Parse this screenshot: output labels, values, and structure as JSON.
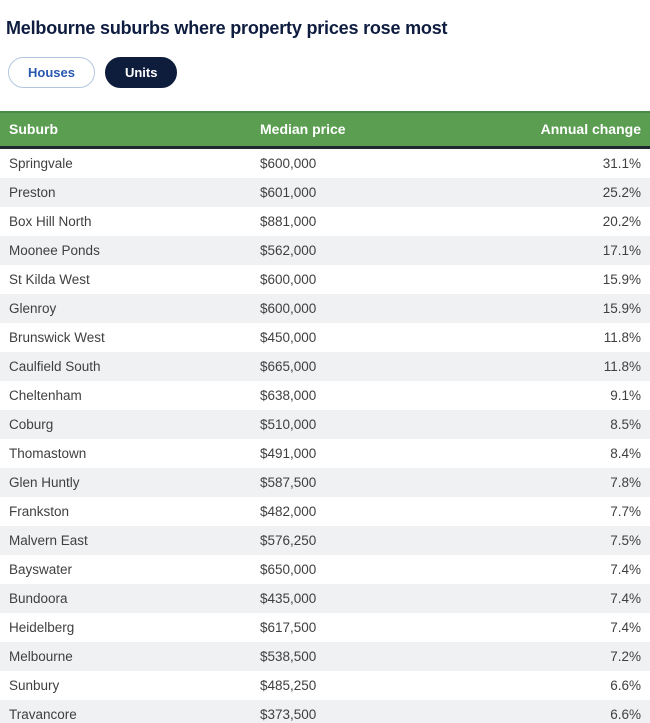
{
  "title": "Melbourne suburbs where property prices rose most",
  "tabs": [
    {
      "label": "Houses",
      "state": "inactive"
    },
    {
      "label": "Units",
      "state": "active"
    }
  ],
  "colors": {
    "header_green": "#5b9e52",
    "header_green_top_border": "#4a8943",
    "header_bottom_border": "#20282f",
    "navy": "#0f1d3d",
    "tab_blue_text": "#2a58b0",
    "tab_blue_border": "#b4c6df",
    "row_alt_gray": "#f0f1f3",
    "cell_text": "#3f3f3f"
  },
  "chart_data": {
    "type": "table",
    "title": "Melbourne suburbs where property prices rose most",
    "tab_options": [
      "Houses",
      "Units"
    ],
    "selected_tab": "Units",
    "columns": [
      "Suburb",
      "Median price",
      "Annual change"
    ],
    "rows": [
      {
        "suburb": "Springvale",
        "median_price": "$600,000",
        "annual_change": "31.1%"
      },
      {
        "suburb": "Preston",
        "median_price": "$601,000",
        "annual_change": "25.2%"
      },
      {
        "suburb": "Box Hill North",
        "median_price": "$881,000",
        "annual_change": "20.2%"
      },
      {
        "suburb": "Moonee Ponds",
        "median_price": "$562,000",
        "annual_change": "17.1%"
      },
      {
        "suburb": "St Kilda West",
        "median_price": "$600,000",
        "annual_change": "15.9%"
      },
      {
        "suburb": "Glenroy",
        "median_price": "$600,000",
        "annual_change": "15.9%"
      },
      {
        "suburb": "Brunswick West",
        "median_price": "$450,000",
        "annual_change": "11.8%"
      },
      {
        "suburb": "Caulfield South",
        "median_price": "$665,000",
        "annual_change": "11.8%"
      },
      {
        "suburb": "Cheltenham",
        "median_price": "$638,000",
        "annual_change": "9.1%"
      },
      {
        "suburb": "Coburg",
        "median_price": "$510,000",
        "annual_change": "8.5%"
      },
      {
        "suburb": "Thomastown",
        "median_price": "$491,000",
        "annual_change": "8.4%"
      },
      {
        "suburb": "Glen Huntly",
        "median_price": "$587,500",
        "annual_change": "7.8%"
      },
      {
        "suburb": "Frankston",
        "median_price": "$482,000",
        "annual_change": "7.7%"
      },
      {
        "suburb": "Malvern East",
        "median_price": "$576,250",
        "annual_change": "7.5%"
      },
      {
        "suburb": "Bayswater",
        "median_price": "$650,000",
        "annual_change": "7.4%"
      },
      {
        "suburb": "Bundoora",
        "median_price": "$435,000",
        "annual_change": "7.4%"
      },
      {
        "suburb": "Heidelberg",
        "median_price": "$617,500",
        "annual_change": "7.4%"
      },
      {
        "suburb": "Melbourne",
        "median_price": "$538,500",
        "annual_change": "7.2%"
      },
      {
        "suburb": "Sunbury",
        "median_price": "$485,250",
        "annual_change": "6.6%"
      },
      {
        "suburb": "Travancore",
        "median_price": "$373,500",
        "annual_change": "6.6%"
      }
    ]
  }
}
